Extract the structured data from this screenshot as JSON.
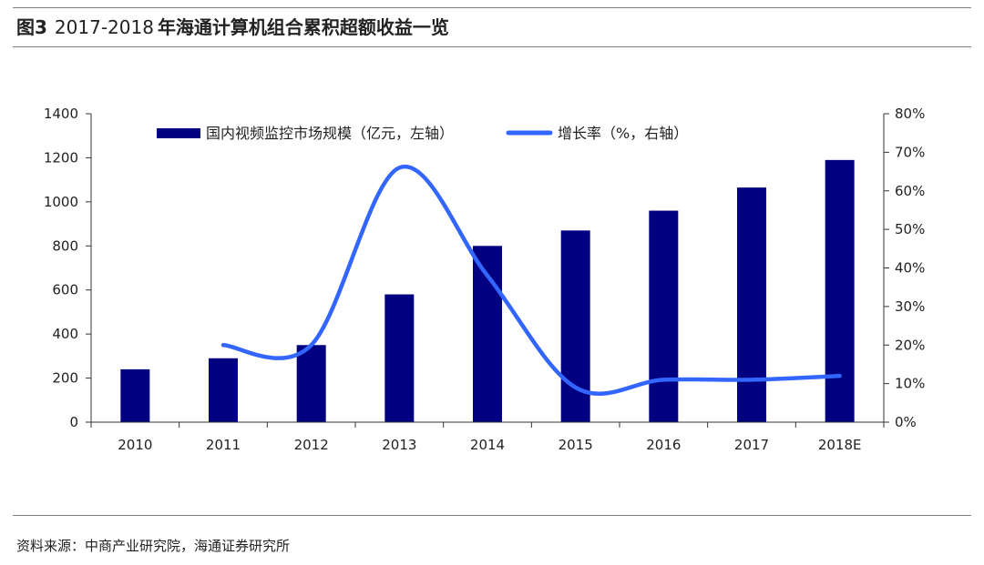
{
  "caption": {
    "figure_label": "图3",
    "number": "2017-2018",
    "title": "年海通计算机组合累积超额收益一览"
  },
  "source": "资料来源：中商产业研究院，海通证券研究所",
  "chart_data": {
    "type": "bar",
    "categories": [
      "2010",
      "2011",
      "2012",
      "2013",
      "2014",
      "2015",
      "2016",
      "2017",
      "2018E"
    ],
    "series": [
      {
        "name": "国内视频监控市场规模（亿元，左轴）",
        "type": "bar",
        "axis": "left",
        "color": "#000080",
        "values": [
          240,
          290,
          350,
          580,
          800,
          870,
          960,
          1065,
          1190
        ]
      },
      {
        "name": "增长率（%，右轴）",
        "type": "line",
        "axis": "right",
        "color": "#3366ff",
        "values": [
          null,
          20,
          20,
          66,
          38,
          9,
          11,
          11,
          12
        ]
      }
    ],
    "y_left": {
      "min": 0,
      "max": 1400,
      "ticks": [
        "0",
        "200",
        "400",
        "600",
        "800",
        "1000",
        "1200",
        "1400"
      ]
    },
    "y_right": {
      "min": 0,
      "max": 80,
      "ticks": [
        "0%",
        "10%",
        "20%",
        "30%",
        "40%",
        "50%",
        "60%",
        "70%",
        "80%"
      ]
    },
    "legend_position": "top",
    "grid": false
  }
}
